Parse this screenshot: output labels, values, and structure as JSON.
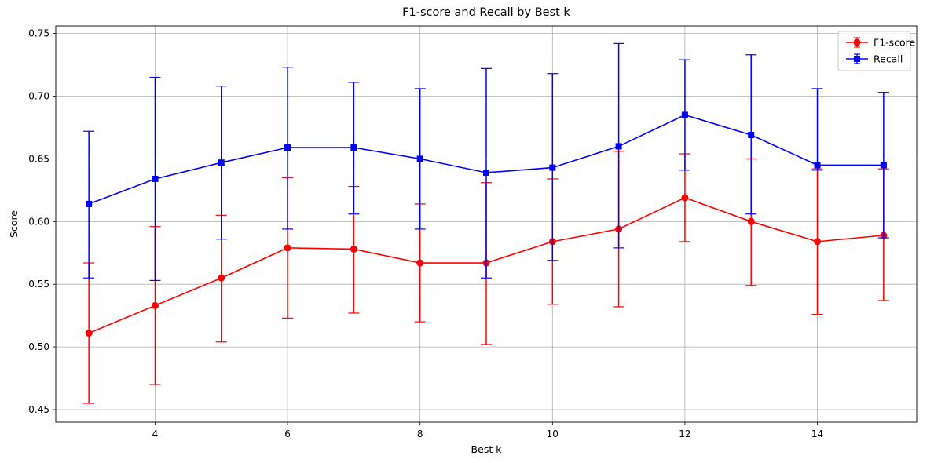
{
  "chart_data": {
    "type": "line",
    "title": "F1-score and Recall by Best k",
    "xlabel": "Best k",
    "ylabel": "Score",
    "xlim": [
      2.5,
      15.5
    ],
    "ylim": [
      0.44,
      0.756
    ],
    "xticks": [
      4,
      6,
      8,
      10,
      12,
      14
    ],
    "yticks": [
      0.45,
      0.5,
      0.55,
      0.6,
      0.65,
      0.7,
      0.75
    ],
    "grid": true,
    "legend_position": "top-right",
    "x": [
      3,
      4,
      5,
      6,
      7,
      8,
      9,
      10,
      11,
      12,
      13,
      14,
      15
    ],
    "series": [
      {
        "name": "F1-score",
        "color": "#ff0000",
        "marker": "circle",
        "values": [
          0.511,
          0.533,
          0.555,
          0.579,
          0.578,
          0.567,
          0.567,
          0.584,
          0.594,
          0.619,
          0.6,
          0.584,
          0.589
        ],
        "err_low": [
          0.455,
          0.47,
          0.504,
          0.523,
          0.527,
          0.52,
          0.502,
          0.534,
          0.532,
          0.584,
          0.549,
          0.526,
          0.537
        ],
        "err_high": [
          0.567,
          0.596,
          0.605,
          0.635,
          0.628,
          0.614,
          0.631,
          0.634,
          0.656,
          0.654,
          0.65,
          0.642,
          0.642
        ]
      },
      {
        "name": "Recall",
        "color": "#0000ff",
        "marker": "square",
        "values": [
          0.614,
          0.634,
          0.647,
          0.659,
          0.659,
          0.65,
          0.639,
          0.643,
          0.66,
          0.685,
          0.669,
          0.645,
          0.645
        ],
        "err_low": [
          0.555,
          0.553,
          0.586,
          0.594,
          0.606,
          0.594,
          0.555,
          0.569,
          0.579,
          0.641,
          0.606,
          0.641,
          0.587
        ],
        "err_high": [
          0.672,
          0.715,
          0.708,
          0.723,
          0.711,
          0.706,
          0.722,
          0.718,
          0.742,
          0.729,
          0.733,
          0.706,
          0.703
        ]
      }
    ]
  }
}
